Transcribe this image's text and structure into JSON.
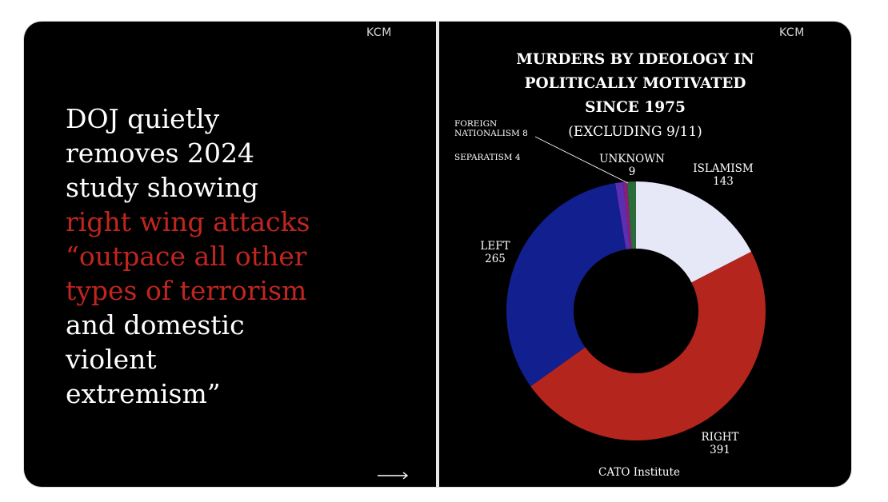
{
  "left_panel": {
    "brand": "KCM",
    "headline": [
      {
        "text": "DOJ quietly",
        "color": "white"
      },
      {
        "text": "removes 2024",
        "color": "white"
      },
      {
        "text": "study showing",
        "color": "white"
      },
      {
        "text": " right wing attacks",
        "color": "red"
      },
      {
        "text": "“outpace all other",
        "color": "red"
      },
      {
        "text": "types of terrorism",
        "color": "red"
      },
      {
        "text": " and domestic",
        "color": "white"
      },
      {
        "text": "violent",
        "color": "white"
      },
      {
        "text": "extremism”",
        "color": "white"
      }
    ],
    "next_icon": "arrow-right-icon"
  },
  "right_panel": {
    "brand": "KCM",
    "title_lines": [
      "MURDERS BY IDEOLOGY IN",
      "POLITICALLY MOTIVATED",
      "SINCE 1975"
    ],
    "subtitle": "(EXCLUDING 9/11)",
    "source": "CATO Institute"
  },
  "colors": {
    "islamism": "#e6e8f8",
    "right": "#b3251d",
    "left": "#121f8f",
    "foreign_nationalism": "#5c2fb2",
    "separatism": "#8a1e7a",
    "unknown": "#2b6b3b",
    "red_text": "#c0261f"
  },
  "chart_data": {
    "type": "pie",
    "donut": true,
    "title": "MURDERS BY IDEOLOGY IN POLITICALLY MOTIVATED SINCE 1975",
    "subtitle": "(EXCLUDING 9/11)",
    "categories": [
      "ISLAMISM",
      "RIGHT",
      "LEFT",
      "FOREIGN NATIONALISM",
      "SEPARATISM",
      "UNKNOWN"
    ],
    "values": [
      143,
      391,
      265,
      8,
      4,
      9
    ],
    "slice_labels": [
      {
        "name": "ISLAMISM",
        "value": "143"
      },
      {
        "name": "RIGHT",
        "value": "391"
      },
      {
        "name": "LEFT",
        "value": "265"
      },
      {
        "name": "FOREIGN NATIONALISM",
        "value": "8",
        "text_line1": "FOREIGN",
        "text_line2": "NATIONALISM 8"
      },
      {
        "name": "SEPARATISM",
        "value": "4",
        "text": "SEPARATISM 4"
      },
      {
        "name": "UNKNOWN",
        "value": "9"
      }
    ],
    "source": "CATO Institute"
  }
}
